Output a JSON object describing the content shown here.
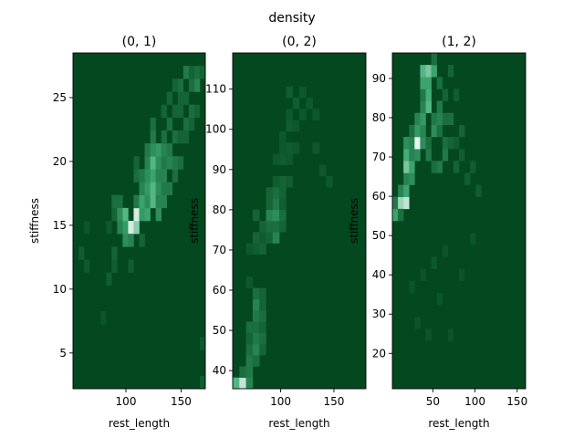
{
  "chart_data": {
    "type": "heatmap",
    "title": "density",
    "colormap": "BuGn_r",
    "colors": {
      "low": "#00441b",
      "mid": "#41ae76",
      "high": "#f7fcfd"
    },
    "panels": [
      {
        "title": "(0, 1)",
        "xlabel": "rest_length",
        "ylabel": "stiffness",
        "xlim": [
          52,
          172
        ],
        "ylim": [
          2.2,
          28.5
        ],
        "xticks": [
          100,
          150
        ],
        "yticks": [
          5,
          10,
          15,
          20,
          25
        ],
        "nx": 24,
        "ny": 26,
        "background": 0.02,
        "cells": [
          [
            1,
            10,
            0.12
          ],
          [
            2,
            12,
            0.08
          ],
          [
            2,
            9,
            0.1
          ],
          [
            5,
            5,
            0.08
          ],
          [
            6,
            8,
            0.12
          ],
          [
            6,
            12,
            0.1
          ],
          [
            7,
            9,
            0.12
          ],
          [
            7,
            10,
            0.15
          ],
          [
            7,
            13,
            0.15
          ],
          [
            7,
            14,
            0.2
          ],
          [
            8,
            12,
            0.3
          ],
          [
            8,
            13,
            0.35
          ],
          [
            8,
            14,
            0.2
          ],
          [
            9,
            11,
            0.35
          ],
          [
            9,
            12,
            0.4
          ],
          [
            9,
            13,
            0.55
          ],
          [
            10,
            12,
            0.9
          ],
          [
            10,
            11,
            0.3
          ],
          [
            10,
            9,
            0.12
          ],
          [
            11,
            12,
            0.7
          ],
          [
            11,
            13,
            0.9
          ],
          [
            11,
            14,
            0.25
          ],
          [
            11,
            16,
            0.2
          ],
          [
            11,
            17,
            0.15
          ],
          [
            12,
            13,
            0.4
          ],
          [
            12,
            14,
            0.45
          ],
          [
            12,
            15,
            0.3
          ],
          [
            12,
            16,
            0.25
          ],
          [
            12,
            11,
            0.15
          ],
          [
            13,
            13,
            0.45
          ],
          [
            13,
            14,
            0.35
          ],
          [
            13,
            15,
            0.4
          ],
          [
            13,
            16,
            0.35
          ],
          [
            13,
            17,
            0.3
          ],
          [
            13,
            18,
            0.25
          ],
          [
            14,
            14,
            0.55
          ],
          [
            14,
            15,
            0.55
          ],
          [
            14,
            16,
            0.45
          ],
          [
            14,
            17,
            0.55
          ],
          [
            14,
            18,
            0.35
          ],
          [
            14,
            19,
            0.25
          ],
          [
            14,
            20,
            0.2
          ],
          [
            15,
            13,
            0.35
          ],
          [
            15,
            14,
            0.3
          ],
          [
            15,
            15,
            0.35
          ],
          [
            15,
            16,
            0.3
          ],
          [
            15,
            17,
            0.35
          ],
          [
            15,
            18,
            0.4
          ],
          [
            16,
            14,
            0.3
          ],
          [
            16,
            15,
            0.25
          ],
          [
            16,
            16,
            0.3
          ],
          [
            16,
            17,
            0.25
          ],
          [
            16,
            18,
            0.3
          ],
          [
            16,
            19,
            0.2
          ],
          [
            16,
            21,
            0.15
          ],
          [
            17,
            15,
            0.25
          ],
          [
            17,
            17,
            0.3
          ],
          [
            17,
            18,
            0.25
          ],
          [
            17,
            20,
            0.2
          ],
          [
            17,
            22,
            0.15
          ],
          [
            18,
            16,
            0.2
          ],
          [
            18,
            17,
            0.25
          ],
          [
            18,
            19,
            0.2
          ],
          [
            18,
            21,
            0.15
          ],
          [
            18,
            23,
            0.15
          ],
          [
            19,
            17,
            0.2
          ],
          [
            19,
            19,
            0.15
          ],
          [
            19,
            21,
            0.15
          ],
          [
            19,
            22,
            0.15
          ],
          [
            19,
            23,
            0.2
          ],
          [
            20,
            19,
            0.15
          ],
          [
            20,
            20,
            0.2
          ],
          [
            20,
            22,
            0.15
          ],
          [
            20,
            24,
            0.25
          ],
          [
            21,
            20,
            0.15
          ],
          [
            21,
            21,
            0.2
          ],
          [
            21,
            23,
            0.2
          ],
          [
            21,
            24,
            0.15
          ],
          [
            22,
            21,
            0.15
          ],
          [
            22,
            23,
            0.3
          ],
          [
            22,
            24,
            0.2
          ],
          [
            23,
            0,
            0.12
          ],
          [
            23,
            3,
            0.1
          ],
          [
            23,
            24,
            0.15
          ]
        ]
      },
      {
        "title": "(0, 2)",
        "xlabel": "rest_length",
        "ylabel": "stiffness",
        "xlim": [
          55,
          180
        ],
        "ylim": [
          35.5,
          119
        ],
        "xticks": [
          100,
          150
        ],
        "yticks": [
          40,
          50,
          60,
          70,
          80,
          90,
          100,
          110
        ],
        "nx": 20,
        "ny": 30,
        "background": 0.02,
        "cells": [
          [
            0,
            0,
            0.55
          ],
          [
            1,
            0,
            0.85
          ],
          [
            2,
            0,
            0.3
          ],
          [
            1,
            1,
            0.2
          ],
          [
            2,
            1,
            0.25
          ],
          [
            2,
            2,
            0.25
          ],
          [
            3,
            2,
            0.2
          ],
          [
            2,
            3,
            0.2
          ],
          [
            3,
            3,
            0.3
          ],
          [
            4,
            3,
            0.15
          ],
          [
            2,
            4,
            0.15
          ],
          [
            3,
            4,
            0.25
          ],
          [
            4,
            4,
            0.2
          ],
          [
            2,
            5,
            0.2
          ],
          [
            3,
            5,
            0.2
          ],
          [
            4,
            5,
            0.15
          ],
          [
            3,
            6,
            0.25
          ],
          [
            4,
            6,
            0.2
          ],
          [
            3,
            7,
            0.3
          ],
          [
            4,
            7,
            0.15
          ],
          [
            3,
            8,
            0.2
          ],
          [
            4,
            8,
            0.15
          ],
          [
            2,
            9,
            0.1
          ],
          [
            2,
            12,
            0.1
          ],
          [
            3,
            12,
            0.12
          ],
          [
            4,
            12,
            0.15
          ],
          [
            3,
            13,
            0.15
          ],
          [
            4,
            13,
            0.12
          ],
          [
            5,
            13,
            0.15
          ],
          [
            6,
            13,
            0.3
          ],
          [
            4,
            14,
            0.15
          ],
          [
            5,
            14,
            0.2
          ],
          [
            6,
            14,
            0.2
          ],
          [
            7,
            14,
            0.15
          ],
          [
            3,
            15,
            0.15
          ],
          [
            5,
            15,
            0.3
          ],
          [
            6,
            15,
            0.35
          ],
          [
            7,
            15,
            0.2
          ],
          [
            5,
            16,
            0.15
          ],
          [
            6,
            16,
            0.25
          ],
          [
            7,
            16,
            0.12
          ],
          [
            5,
            17,
            0.15
          ],
          [
            6,
            17,
            0.2
          ],
          [
            7,
            17,
            0.15
          ],
          [
            6,
            18,
            0.12
          ],
          [
            7,
            18,
            0.15
          ],
          [
            8,
            18,
            0.12
          ],
          [
            6,
            20,
            0.1
          ],
          [
            7,
            20,
            0.12
          ],
          [
            8,
            20,
            0.1
          ],
          [
            7,
            21,
            0.1
          ],
          [
            8,
            21,
            0.12
          ],
          [
            9,
            21,
            0.1
          ],
          [
            7,
            22,
            0.1
          ],
          [
            8,
            23,
            0.12
          ],
          [
            9,
            23,
            0.1
          ],
          [
            8,
            24,
            0.1
          ],
          [
            9,
            25,
            0.12
          ],
          [
            10,
            24,
            0.1
          ],
          [
            8,
            26,
            0.12
          ],
          [
            10,
            26,
            0.1
          ],
          [
            11,
            25,
            0.1
          ],
          [
            12,
            24,
            0.1
          ],
          [
            12,
            21,
            0.1
          ],
          [
            13,
            19,
            0.1
          ],
          [
            14,
            18,
            0.1
          ]
        ]
      },
      {
        "title": "(1, 2)",
        "xlabel": "rest_length",
        "ylabel": "stiffness",
        "xlim": [
          2,
          160
        ],
        "ylim": [
          11,
          96.5
        ],
        "xticks": [
          50,
          100,
          150
        ],
        "yticks": [
          20,
          30,
          40,
          50,
          60,
          70,
          80,
          90
        ],
        "nx": 24,
        "ny": 28,
        "background": 0.02,
        "cells": [
          [
            0,
            14,
            0.45
          ],
          [
            0,
            15,
            0.25
          ],
          [
            1,
            15,
            0.75
          ],
          [
            1,
            16,
            0.3
          ],
          [
            1,
            14,
            0.2
          ],
          [
            2,
            15,
            0.85
          ],
          [
            2,
            16,
            0.45
          ],
          [
            2,
            17,
            0.3
          ],
          [
            2,
            18,
            0.65
          ],
          [
            2,
            19,
            0.5
          ],
          [
            2,
            20,
            0.35
          ],
          [
            3,
            17,
            0.35
          ],
          [
            3,
            18,
            0.45
          ],
          [
            3,
            19,
            0.3
          ],
          [
            3,
            20,
            0.3
          ],
          [
            3,
            21,
            0.2
          ],
          [
            4,
            19,
            0.35
          ],
          [
            4,
            20,
            0.95
          ],
          [
            4,
            21,
            0.4
          ],
          [
            4,
            22,
            0.3
          ],
          [
            5,
            20,
            0.35
          ],
          [
            5,
            21,
            0.3
          ],
          [
            5,
            22,
            0.4
          ],
          [
            5,
            23,
            0.3
          ],
          [
            5,
            24,
            0.25
          ],
          [
            5,
            25,
            0.45
          ],
          [
            5,
            26,
            0.55
          ],
          [
            6,
            23,
            0.55
          ],
          [
            6,
            24,
            0.5
          ],
          [
            6,
            25,
            0.45
          ],
          [
            6,
            26,
            0.65
          ],
          [
            6,
            19,
            0.25
          ],
          [
            6,
            20,
            0.2
          ],
          [
            7,
            26,
            0.45
          ],
          [
            7,
            27,
            0.2
          ],
          [
            7,
            21,
            0.35
          ],
          [
            7,
            22,
            0.25
          ],
          [
            7,
            18,
            0.2
          ],
          [
            8,
            21,
            0.2
          ],
          [
            8,
            22,
            0.3
          ],
          [
            8,
            23,
            0.25
          ],
          [
            8,
            25,
            0.2
          ],
          [
            8,
            18,
            0.25
          ],
          [
            9,
            19,
            0.25
          ],
          [
            9,
            20,
            0.2
          ],
          [
            9,
            22,
            0.2
          ],
          [
            9,
            24,
            0.15
          ],
          [
            10,
            20,
            0.15
          ],
          [
            10,
            22,
            0.2
          ],
          [
            10,
            26,
            0.15
          ],
          [
            11,
            18,
            0.15
          ],
          [
            11,
            20,
            0.12
          ],
          [
            11,
            24,
            0.12
          ],
          [
            12,
            19,
            0.12
          ],
          [
            12,
            21,
            0.15
          ],
          [
            13,
            17,
            0.12
          ],
          [
            14,
            18,
            0.12
          ],
          [
            15,
            16,
            0.12
          ],
          [
            3,
            8,
            0.08
          ],
          [
            4,
            5,
            0.08
          ],
          [
            5,
            9,
            0.08
          ],
          [
            6,
            4,
            0.08
          ],
          [
            8,
            7,
            0.08
          ],
          [
            10,
            4,
            0.08
          ],
          [
            7,
            10,
            0.1
          ],
          [
            9,
            11,
            0.08
          ],
          [
            12,
            9,
            0.08
          ],
          [
            14,
            12,
            0.08
          ]
        ]
      }
    ]
  }
}
